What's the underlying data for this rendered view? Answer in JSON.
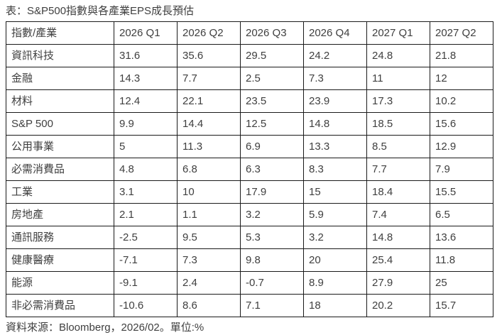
{
  "title": "表：S&P500指數與各產業EPS成長預估",
  "footer": "資料來源：Bloomberg，2026/02。單位:%",
  "colors": {
    "text": "#3f3f3f",
    "border": "#1a1a1a",
    "background": "#ffffff"
  },
  "chart_data": {
    "type": "table",
    "title": "S&P500指數與各產業EPS成長預估",
    "unit": "%",
    "source": "Bloomberg，2026/02",
    "columns": [
      "指數/產業",
      "2026 Q1",
      "2026 Q2",
      "2026 Q3",
      "2026 Q4",
      "2027 Q1",
      "2027 Q2"
    ],
    "rows": [
      {
        "label": "資訊科技",
        "values": [
          "31.6",
          "35.6",
          "29.5",
          "24.2",
          "24.8",
          "21.8"
        ]
      },
      {
        "label": "金融",
        "values": [
          "14.3",
          "7.7",
          "2.5",
          "7.3",
          "11",
          "12"
        ]
      },
      {
        "label": "材料",
        "values": [
          "12.4",
          "22.1",
          "23.5",
          "23.9",
          "17.3",
          "10.2"
        ]
      },
      {
        "label": "S&P 500",
        "values": [
          "9.9",
          "14.4",
          "12.5",
          "14.8",
          "18.5",
          "15.6"
        ]
      },
      {
        "label": "公用事業",
        "values": [
          "5",
          "11.3",
          "6.9",
          "13.3",
          "8.5",
          "12.9"
        ]
      },
      {
        "label": "必需消費品",
        "values": [
          "4.8",
          "6.8",
          "6.3",
          "8.3",
          "7.7",
          "7.9"
        ]
      },
      {
        "label": "工業",
        "values": [
          "3.1",
          "10",
          "17.9",
          "15",
          "18.4",
          "15.5"
        ]
      },
      {
        "label": "房地產",
        "values": [
          "2.1",
          "1.1",
          "3.2",
          "5.9",
          "7.4",
          "6.5"
        ]
      },
      {
        "label": "通訊服務",
        "values": [
          "-2.5",
          "9.5",
          "5.3",
          "3.2",
          "14.8",
          "13.6"
        ]
      },
      {
        "label": "健康醫療",
        "values": [
          "-7.1",
          "7.3",
          "9.8",
          "20",
          "25.4",
          "11.8"
        ]
      },
      {
        "label": "能源",
        "values": [
          "-9.1",
          "2.4",
          "-0.7",
          "8.9",
          "27.9",
          "25"
        ]
      },
      {
        "label": "非必需消費品",
        "values": [
          "-10.6",
          "8.6",
          "7.1",
          "18",
          "20.2",
          "15.7"
        ]
      }
    ]
  }
}
